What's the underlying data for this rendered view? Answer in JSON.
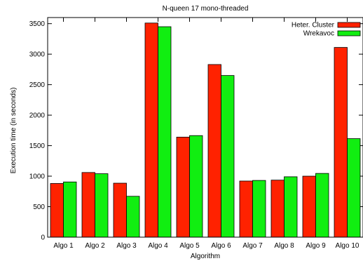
{
  "chart_data": {
    "type": "bar",
    "title": "N-queen 17 mono-threaded",
    "xlabel": "Algorithm",
    "ylabel": "Execution time (in seconds)",
    "ylim": [
      0,
      3600
    ],
    "yticks": [
      0,
      500,
      1000,
      1500,
      2000,
      2500,
      3000,
      3500
    ],
    "grid": false,
    "legend_position": "top-right",
    "categories": [
      "Algo 1",
      "Algo 2",
      "Algo 3",
      "Algo 4",
      "Algo 5",
      "Algo 6",
      "Algo 7",
      "Algo 8",
      "Algo 9",
      "Algo 10"
    ],
    "series": [
      {
        "name": "Heter. Cluster",
        "color": "#ff2200",
        "values": [
          880,
          1060,
          885,
          3510,
          1640,
          2830,
          920,
          935,
          1000,
          3110
        ]
      },
      {
        "name": "Wrekavoc",
        "color": "#11ee11",
        "values": [
          905,
          1040,
          670,
          3450,
          1665,
          2650,
          930,
          990,
          1045,
          1615
        ]
      }
    ]
  }
}
